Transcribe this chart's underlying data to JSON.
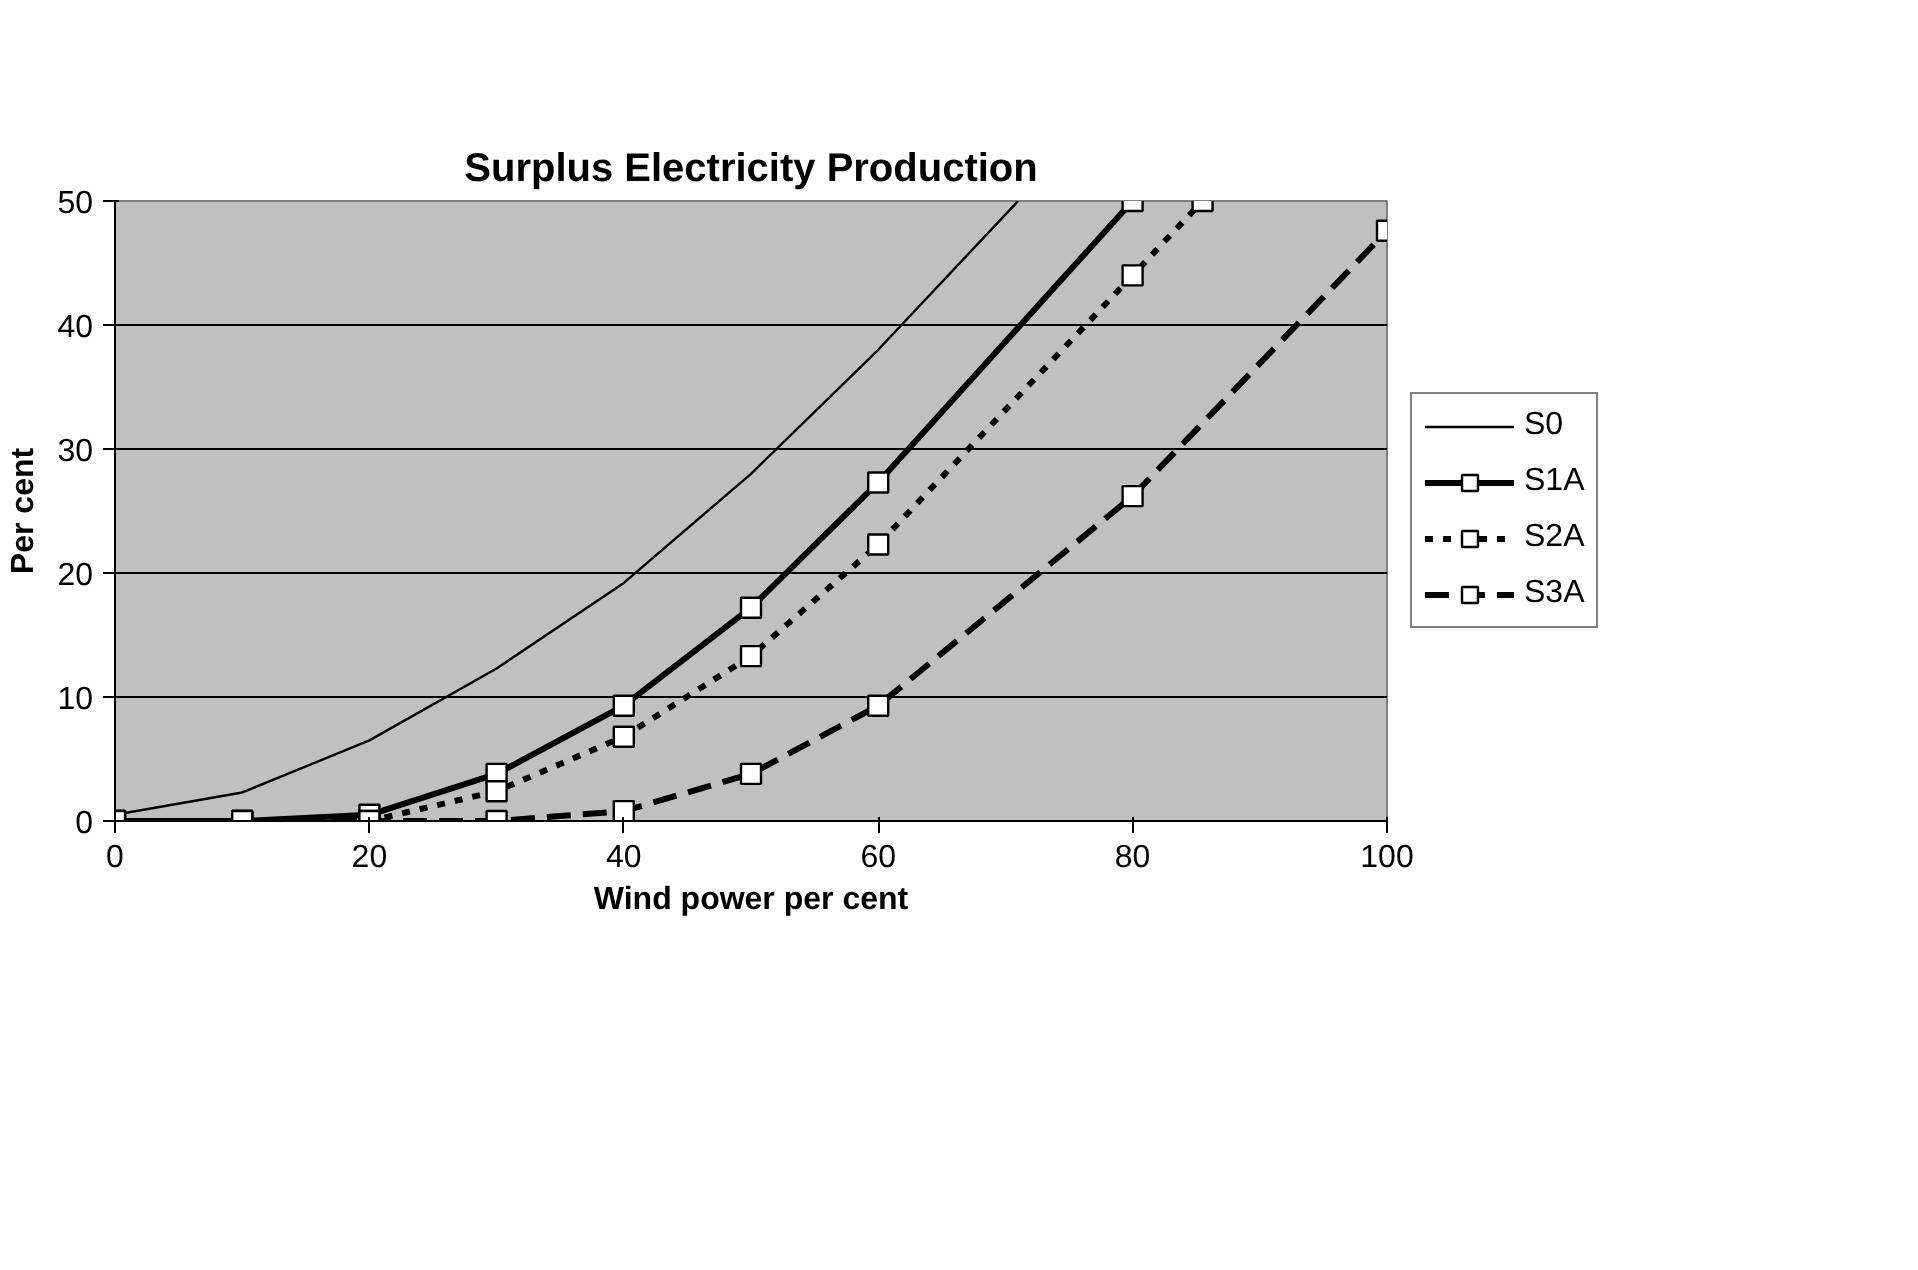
{
  "chart_data": {
    "type": "line",
    "title": "Surplus Electricity Production",
    "xlabel": "Wind power per cent",
    "ylabel": "Per cent",
    "xlim": [
      0,
      100
    ],
    "ylim": [
      0,
      50
    ],
    "xticks": [
      0,
      20,
      40,
      60,
      80,
      100
    ],
    "yticks": [
      0,
      10,
      20,
      30,
      40,
      50
    ],
    "grid": "y",
    "legend": "right",
    "series": [
      {
        "name": "S0",
        "color": "#000000",
        "marker": "none",
        "line_style": "solid",
        "x": [
          0,
          10,
          20,
          30,
          40,
          50,
          60,
          71
        ],
        "values": [
          0.5,
          2.3,
          6.5,
          12.3,
          19.2,
          28,
          38,
          50
        ]
      },
      {
        "name": "S1A",
        "color": "#000000",
        "marker": "square",
        "line_style": "solid",
        "x": [
          0,
          10,
          20,
          30,
          40,
          50,
          60,
          80
        ],
        "values": [
          0,
          0,
          0.5,
          3.8,
          9.3,
          17.2,
          27.3,
          50
        ]
      },
      {
        "name": "S2A",
        "color": "#000000",
        "marker": "square",
        "line_style": "dotted",
        "x": [
          0,
          10,
          20,
          30,
          40,
          50,
          60,
          80,
          85.5
        ],
        "values": [
          0,
          0,
          0,
          2.4,
          6.8,
          13.3,
          22.3,
          44,
          50
        ]
      },
      {
        "name": "S3A",
        "color": "#000000",
        "marker": "square",
        "line_style": "dashed",
        "x": [
          0,
          10,
          20,
          30,
          40,
          50,
          60,
          80,
          100
        ],
        "values": [
          0,
          0,
          0,
          0,
          0.8,
          3.8,
          9.3,
          26.2,
          47.6
        ]
      }
    ]
  }
}
